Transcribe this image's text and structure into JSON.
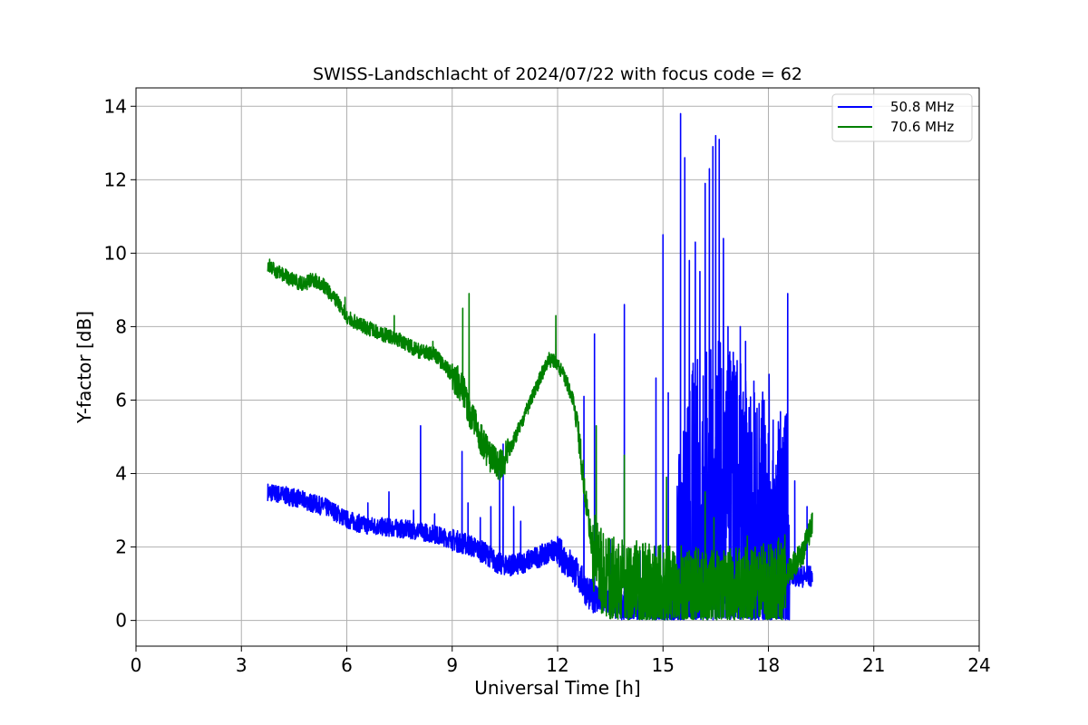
{
  "chart_data": {
    "type": "line",
    "title": "SWISS-Landschlacht of 2024/07/22 with focus code = 62",
    "xlabel": "Universal Time [h]",
    "ylabel": "Y-factor [dB]",
    "xlim": [
      0,
      24
    ],
    "ylim": [
      -0.7,
      14.5
    ],
    "x_ticks": [
      0,
      3,
      6,
      9,
      12,
      15,
      18,
      21,
      24
    ],
    "y_ticks": [
      0,
      2,
      4,
      6,
      8,
      10,
      12,
      14
    ],
    "x_tick_labels": [
      "0",
      "3",
      "6",
      "9",
      "12",
      "15",
      "18",
      "21",
      "24"
    ],
    "y_tick_labels": [
      "0",
      "2",
      "4",
      "6",
      "8",
      "10",
      "12",
      "14"
    ],
    "grid": true,
    "legend_position": "top-right",
    "series": [
      {
        "name": "50.8 MHz",
        "color": "#0000ff",
        "points": [
          [
            3.75,
            3.5
          ],
          [
            4.0,
            3.45
          ],
          [
            4.5,
            3.35
          ],
          [
            5.0,
            3.2
          ],
          [
            5.5,
            3.05
          ],
          [
            6.0,
            2.75
          ],
          [
            6.5,
            2.6
          ],
          [
            7.0,
            2.55
          ],
          [
            7.5,
            2.5
          ],
          [
            8.0,
            2.45
          ],
          [
            8.5,
            2.35
          ],
          [
            9.0,
            2.2
          ],
          [
            9.5,
            2.05
          ],
          [
            10.0,
            1.8
          ],
          [
            10.3,
            1.55
          ],
          [
            10.8,
            1.5
          ],
          [
            11.2,
            1.65
          ],
          [
            11.5,
            1.75
          ],
          [
            11.8,
            1.9
          ],
          [
            12.0,
            1.85
          ],
          [
            12.3,
            1.6
          ],
          [
            12.6,
            1.2
          ],
          [
            12.9,
            0.7
          ],
          [
            13.2,
            0.6
          ],
          [
            13.5,
            0.5
          ],
          [
            14.0,
            0.3
          ],
          [
            14.5,
            0.25
          ],
          [
            15.0,
            0.2
          ],
          [
            15.5,
            0.3
          ],
          [
            15.8,
            2.5
          ],
          [
            16.2,
            3.0
          ],
          [
            16.5,
            3.2
          ],
          [
            17.0,
            2.8
          ],
          [
            17.5,
            2.2
          ],
          [
            18.0,
            1.6
          ],
          [
            18.5,
            1.3
          ],
          [
            18.9,
            1.2
          ],
          [
            19.25,
            1.2
          ]
        ],
        "spikes": [
          [
            6.6,
            3.2
          ],
          [
            7.2,
            3.5
          ],
          [
            7.9,
            3.0
          ],
          [
            8.1,
            5.3
          ],
          [
            8.5,
            2.9
          ],
          [
            9.28,
            4.6
          ],
          [
            9.45,
            3.2
          ],
          [
            9.8,
            2.8
          ],
          [
            10.1,
            3.1
          ],
          [
            10.35,
            4.3
          ],
          [
            10.45,
            4.8
          ],
          [
            10.75,
            3.1
          ],
          [
            10.95,
            2.7
          ],
          [
            12.75,
            6.1
          ],
          [
            13.05,
            7.8
          ],
          [
            13.5,
            2.2
          ],
          [
            13.9,
            8.6
          ],
          [
            14.35,
            1.9
          ],
          [
            14.8,
            6.6
          ],
          [
            15.0,
            10.5
          ],
          [
            15.15,
            6.2
          ],
          [
            15.5,
            13.8
          ],
          [
            15.62,
            12.6
          ],
          [
            15.75,
            9.8
          ],
          [
            15.92,
            10.3
          ],
          [
            16.05,
            9.5
          ],
          [
            16.2,
            11.9
          ],
          [
            16.32,
            12.3
          ],
          [
            16.42,
            12.9
          ],
          [
            16.5,
            13.2
          ],
          [
            16.6,
            13.1
          ],
          [
            16.72,
            10.4
          ],
          [
            16.85,
            8.0
          ],
          [
            17.0,
            7.3
          ],
          [
            17.2,
            8.0
          ],
          [
            17.35,
            7.6
          ],
          [
            17.6,
            6.2
          ],
          [
            17.8,
            5.5
          ],
          [
            18.02,
            6.7
          ],
          [
            18.3,
            5.2
          ],
          [
            18.55,
            8.9
          ],
          [
            18.75,
            3.8
          ],
          [
            19.1,
            3.1
          ]
        ],
        "noise": [
          [
            3.75,
            9.0,
            0.25
          ],
          [
            9.0,
            12.0,
            0.3
          ],
          [
            12.0,
            15.4,
            0.45
          ],
          [
            15.4,
            18.6,
            4.5
          ],
          [
            18.6,
            19.25,
            0.3
          ]
        ]
      },
      {
        "name": "70.6 MHz",
        "color": "#008000",
        "points": [
          [
            3.75,
            9.7
          ],
          [
            4.0,
            9.5
          ],
          [
            4.5,
            9.25
          ],
          [
            4.8,
            9.15
          ],
          [
            5.0,
            9.3
          ],
          [
            5.3,
            9.15
          ],
          [
            5.8,
            8.6
          ],
          [
            6.0,
            8.25
          ],
          [
            6.5,
            8.0
          ],
          [
            7.0,
            7.8
          ],
          [
            7.5,
            7.65
          ],
          [
            8.0,
            7.35
          ],
          [
            8.5,
            7.25
          ],
          [
            9.0,
            6.7
          ],
          [
            9.3,
            6.3
          ],
          [
            9.5,
            5.7
          ],
          [
            9.8,
            5.0
          ],
          [
            10.1,
            4.4
          ],
          [
            10.3,
            4.2
          ],
          [
            10.5,
            4.4
          ],
          [
            10.8,
            5.0
          ],
          [
            11.2,
            5.9
          ],
          [
            11.5,
            6.6
          ],
          [
            11.75,
            7.1
          ],
          [
            12.0,
            7.0
          ],
          [
            12.3,
            6.4
          ],
          [
            12.5,
            5.8
          ],
          [
            12.7,
            4.2
          ],
          [
            12.9,
            2.5
          ],
          [
            13.1,
            1.5
          ],
          [
            13.5,
            1.1
          ],
          [
            14.0,
            1.0
          ],
          [
            14.5,
            1.0
          ],
          [
            15.0,
            0.9
          ],
          [
            15.5,
            0.85
          ],
          [
            16.0,
            0.8
          ],
          [
            16.5,
            0.7
          ],
          [
            17.0,
            0.8
          ],
          [
            17.5,
            0.9
          ],
          [
            18.0,
            0.9
          ],
          [
            18.5,
            1.2
          ],
          [
            19.0,
            1.9
          ],
          [
            19.25,
            2.6
          ]
        ],
        "spikes": [
          [
            5.95,
            8.8
          ],
          [
            7.35,
            8.3
          ],
          [
            8.45,
            7.6
          ],
          [
            9.3,
            8.5
          ],
          [
            9.48,
            8.9
          ],
          [
            11.95,
            8.3
          ],
          [
            13.1,
            5.3
          ],
          [
            13.9,
            4.5
          ],
          [
            15.1,
            3.9
          ],
          [
            16.2,
            3.5
          ],
          [
            16.45,
            2.8
          ],
          [
            17.4,
            2.3
          ]
        ],
        "noise": [
          [
            3.75,
            9.0,
            0.2
          ],
          [
            9.0,
            10.6,
            0.45
          ],
          [
            10.6,
            12.5,
            0.2
          ],
          [
            12.5,
            13.0,
            0.4
          ],
          [
            13.0,
            18.5,
            1.2
          ],
          [
            18.5,
            19.25,
            0.35
          ]
        ]
      }
    ]
  },
  "colors": {
    "blue_series": "#0000ff",
    "green_series": "#008000",
    "grid": "#b0b0b0",
    "axes": "#000000",
    "background": "#ffffff"
  }
}
